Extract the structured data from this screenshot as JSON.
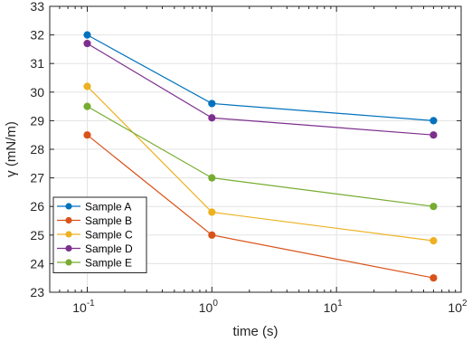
{
  "chart_data": {
    "type": "line",
    "title": "",
    "xlabel": "time (s)",
    "ylabel": "γ (mN/m)",
    "xscale": "log",
    "xlim": [
      0.05,
      100
    ],
    "ylim": [
      23,
      33
    ],
    "grid": true,
    "legend_position": "lower-left",
    "x": [
      0.1,
      1,
      60
    ],
    "x_ticks": [
      {
        "value": 0.1,
        "base": "10",
        "exp": "-1"
      },
      {
        "value": 1,
        "base": "10",
        "exp": "0"
      },
      {
        "value": 10,
        "base": "10",
        "exp": "1"
      },
      {
        "value": 100,
        "base": "10",
        "exp": "2"
      }
    ],
    "y_ticks": [
      "23",
      "24",
      "25",
      "26",
      "27",
      "28",
      "29",
      "30",
      "31",
      "32",
      "33"
    ],
    "series": [
      {
        "name": "Sample A",
        "color": "#0072BD",
        "values": [
          32.0,
          29.6,
          29.0
        ]
      },
      {
        "name": "Sample B",
        "color": "#D95319",
        "values": [
          28.5,
          25.0,
          23.5
        ]
      },
      {
        "name": "Sample C",
        "color": "#EDB120",
        "values": [
          30.2,
          25.8,
          24.8
        ]
      },
      {
        "name": "Sample D",
        "color": "#7E2F8E",
        "values": [
          31.7,
          29.1,
          28.5
        ]
      },
      {
        "name": "Sample E",
        "color": "#77AC30",
        "values": [
          29.5,
          27.0,
          26.0
        ]
      }
    ]
  }
}
